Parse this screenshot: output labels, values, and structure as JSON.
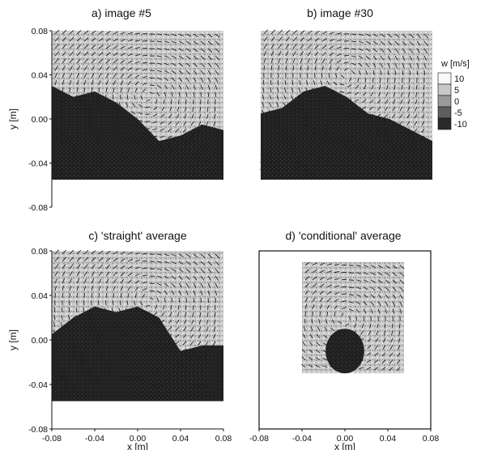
{
  "chart_data": {
    "type": "heatmap",
    "colorbar": {
      "label": "w [m/s]",
      "ticks": [
        "10",
        "5",
        "0",
        "-5",
        "-10"
      ],
      "range": [
        -10,
        10
      ]
    },
    "panels": [
      {
        "id": "a",
        "title": "a) image #5",
        "ylabel": "y [m]",
        "xlabel": "",
        "show_y_ticks": true,
        "show_x_ticks": false,
        "xlim": [
          -0.08,
          0.08
        ],
        "ylim": [
          -0.08,
          0.08
        ],
        "y_ticks": [
          "0.08",
          "0.04",
          "0.00",
          "-0.04",
          "-0.08"
        ],
        "x_ticks": [],
        "field_extent": {
          "x": [
            -0.08,
            0.08
          ],
          "y": [
            -0.055,
            0.08
          ]
        },
        "vortex_center": [
          0.01,
          0.02
        ],
        "dark_profile": [
          [
            -0.08,
            0.03
          ],
          [
            -0.06,
            0.02
          ],
          [
            -0.04,
            0.025
          ],
          [
            -0.02,
            0.015
          ],
          [
            0.0,
            0.0
          ],
          [
            0.02,
            -0.02
          ],
          [
            0.04,
            -0.015
          ],
          [
            0.06,
            -0.005
          ],
          [
            0.08,
            -0.01
          ]
        ],
        "boxed": false
      },
      {
        "id": "b",
        "title": "b) image #30",
        "ylabel": "",
        "xlabel": "",
        "show_y_ticks": false,
        "show_x_ticks": false,
        "xlim": [
          -0.08,
          0.08
        ],
        "ylim": [
          -0.08,
          0.08
        ],
        "y_ticks": [],
        "x_ticks": [],
        "field_extent": {
          "x": [
            -0.08,
            0.08
          ],
          "y": [
            -0.055,
            0.08
          ]
        },
        "vortex_center": [
          0.0,
          0.04
        ],
        "dark_profile": [
          [
            -0.08,
            0.005
          ],
          [
            -0.06,
            0.01
          ],
          [
            -0.04,
            0.025
          ],
          [
            -0.02,
            0.03
          ],
          [
            0.0,
            0.02
          ],
          [
            0.02,
            0.005
          ],
          [
            0.04,
            0.0
          ],
          [
            0.06,
            -0.01
          ],
          [
            0.08,
            -0.02
          ]
        ],
        "boxed": false
      },
      {
        "id": "c",
        "title": "c) 'straight' average",
        "ylabel": "y [m]",
        "xlabel": "x [m]",
        "show_y_ticks": true,
        "show_x_ticks": true,
        "xlim": [
          -0.08,
          0.08
        ],
        "ylim": [
          -0.08,
          0.08
        ],
        "y_ticks": [
          "0.08",
          "0.04",
          "0.00",
          "-0.04",
          "-0.08"
        ],
        "x_ticks": [
          "-0.08",
          "-0.04",
          "0.00",
          "0.04",
          "0.08"
        ],
        "field_extent": {
          "x": [
            -0.08,
            0.08
          ],
          "y": [
            -0.055,
            0.08
          ]
        },
        "vortex_center": [
          0.01,
          0.035
        ],
        "dark_profile": [
          [
            -0.08,
            0.005
          ],
          [
            -0.06,
            0.02
          ],
          [
            -0.04,
            0.03
          ],
          [
            -0.02,
            0.025
          ],
          [
            0.0,
            0.03
          ],
          [
            0.02,
            0.02
          ],
          [
            0.04,
            -0.01
          ],
          [
            0.06,
            -0.005
          ],
          [
            0.08,
            -0.005
          ]
        ],
        "boxed": false
      },
      {
        "id": "d",
        "title": "d) 'conditional' average",
        "ylabel": "",
        "xlabel": "x [m]",
        "show_y_ticks": false,
        "show_x_ticks": true,
        "xlim": [
          -0.08,
          0.08
        ],
        "ylim": [
          -0.08,
          0.08
        ],
        "y_ticks": [],
        "x_ticks": [
          "-0.08",
          "-0.04",
          "0.00",
          "0.04",
          "0.08"
        ],
        "field_extent": {
          "x": [
            -0.04,
            0.055
          ],
          "y": [
            -0.03,
            0.07
          ]
        },
        "vortex_center": [
          0.0,
          0.02
        ],
        "dark_blob": {
          "center": [
            0.0,
            -0.01
          ],
          "radius": [
            0.018,
            0.02
          ]
        },
        "boxed": true
      }
    ]
  }
}
